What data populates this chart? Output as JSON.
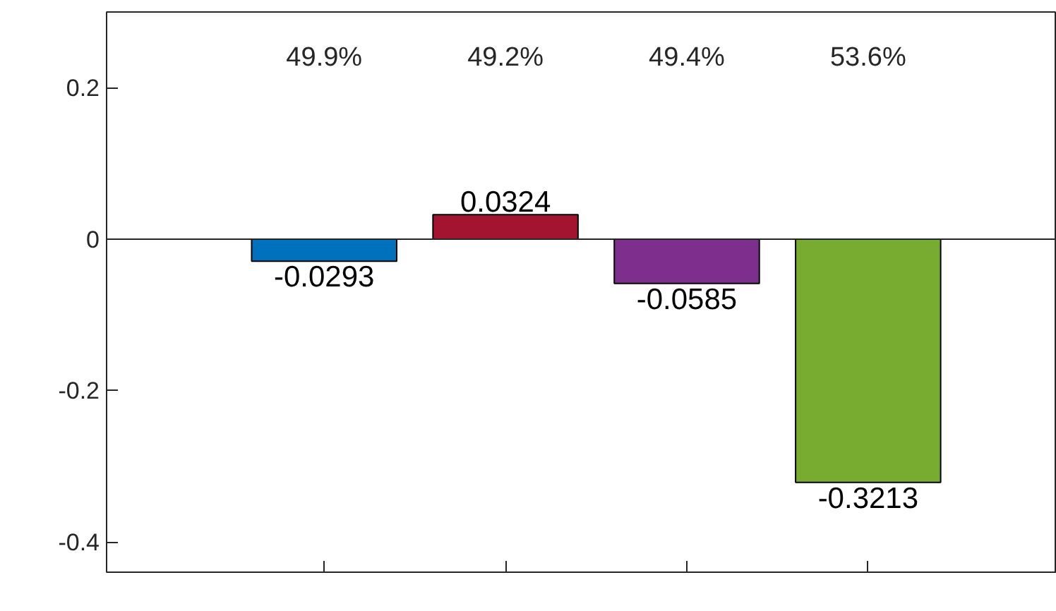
{
  "chart_data": {
    "type": "bar",
    "categories": [
      null,
      null,
      null,
      null
    ],
    "values": [
      -0.0293,
      0.0324,
      -0.0585,
      -0.3213
    ],
    "colors": [
      "#0072bd",
      "#a2142f",
      "#7e2f8e",
      "#77ac30"
    ],
    "data_labels": true,
    "annotations": [
      "49.9%",
      "49.2%",
      "49.4%",
      "53.6%"
    ],
    "ylim": [
      -0.44,
      0.3
    ],
    "yticks": [
      -0.4,
      -0.2,
      0,
      0.2
    ],
    "ref_lines": [
      {
        "axis": "y",
        "value": 0,
        "color": "#262626"
      }
    ],
    "grid": false
  }
}
